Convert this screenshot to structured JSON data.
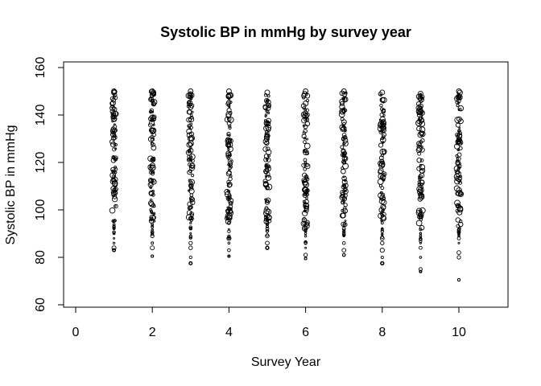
{
  "chart_data": {
    "type": "scatter",
    "title": "Systolic BP in mmHg by survey year",
    "xlabel": "Survey Year",
    "ylabel": "Systolic BP in mmHg",
    "xlim": [
      0,
      11
    ],
    "ylim": [
      60,
      160
    ],
    "xticks": [
      0,
      2,
      4,
      6,
      8,
      10
    ],
    "yticks": [
      60,
      80,
      100,
      120,
      140,
      160
    ],
    "grid": false,
    "marker": "open-circle",
    "point_color": "#000000",
    "description": "Each survey year 1–10 shows a dense vertical column of open circles, mostly between 95 and 150 mmHg, with sparser outliers below.",
    "series": [
      {
        "x": 1,
        "min": 83,
        "max": 150,
        "dense_range": [
          95,
          150
        ],
        "outliers": [
          83,
          84,
          86,
          88,
          90
        ]
      },
      {
        "x": 2,
        "min": 80.5,
        "max": 150,
        "dense_range": [
          95,
          150
        ],
        "outliers": [
          80.5,
          84,
          86,
          89
        ]
      },
      {
        "x": 3,
        "min": 77.5,
        "max": 150,
        "dense_range": [
          95,
          150
        ],
        "outliers": [
          77.5,
          80,
          84,
          86,
          88
        ]
      },
      {
        "x": 4,
        "min": 80.5,
        "max": 150,
        "dense_range": [
          95,
          150
        ],
        "outliers": [
          80.5,
          83,
          86,
          88
        ]
      },
      {
        "x": 5,
        "min": 84,
        "max": 149.5,
        "dense_range": [
          95,
          149
        ],
        "outliers": [
          84,
          86,
          89
        ]
      },
      {
        "x": 6,
        "min": 79.5,
        "max": 150,
        "dense_range": [
          92,
          150
        ],
        "outliers": [
          79.5,
          81,
          84,
          86
        ]
      },
      {
        "x": 7,
        "min": 81,
        "max": 150,
        "dense_range": [
          93,
          150
        ],
        "outliers": [
          81,
          83,
          86,
          89
        ]
      },
      {
        "x": 8,
        "min": 77.5,
        "max": 149.5,
        "dense_range": [
          95,
          149
        ],
        "outliers": [
          77.5,
          80,
          83,
          86,
          88
        ]
      },
      {
        "x": 9,
        "min": 74,
        "max": 149,
        "dense_range": [
          92,
          149
        ],
        "outliers": [
          74,
          75,
          80,
          84,
          86
        ]
      },
      {
        "x": 10,
        "min": 70.5,
        "max": 150,
        "dense_range": [
          92,
          150
        ],
        "outliers": [
          70.5,
          80,
          82,
          86,
          88
        ]
      }
    ]
  }
}
